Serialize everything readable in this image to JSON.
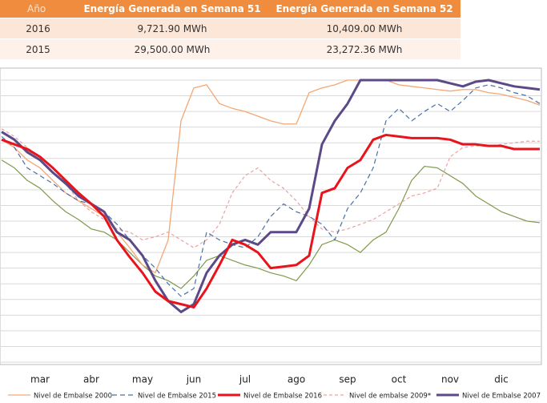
{
  "table": {
    "headers": [
      "Año",
      "Energía Generada en Semana 51",
      "Energía Generada en Semana 52"
    ],
    "rows": [
      [
        "2016",
        "9,721.90 MWh",
        "10,409.00 MWh"
      ],
      [
        "2015",
        "29,500.00 MWh",
        "23,272.36 MWh"
      ]
    ]
  },
  "chart_data": {
    "type": "line",
    "categories": [
      null,
      null,
      null,
      "mar",
      null,
      null,
      null,
      "abr",
      null,
      null,
      null,
      "may",
      null,
      null,
      null,
      "jun",
      null,
      null,
      null,
      "jul",
      null,
      null,
      null,
      "ago",
      null,
      null,
      null,
      "sep",
      null,
      null,
      null,
      "oct",
      null,
      null,
      null,
      "nov",
      null,
      null,
      null,
      "dic",
      null,
      null,
      null
    ],
    "ylim": [
      0,
      18
    ],
    "grid": true,
    "series": [
      {
        "name": "Nivel de Embalse 2000",
        "color": "#f4a774",
        "width": 1.3,
        "dash": "none",
        "values": [
          14.2,
          13.7,
          12.9,
          12.4,
          11.6,
          10.8,
          10.3,
          9.8,
          9.3,
          8.3,
          7.3,
          6.2,
          5.7,
          7.8,
          15.4,
          17.5,
          17.7,
          16.5,
          16.2,
          16.0,
          15.7,
          15.4,
          15.2,
          15.2,
          17.2,
          17.5,
          17.7,
          18.0,
          18.0,
          18.0,
          18.0,
          17.7,
          17.6,
          17.5,
          17.4,
          17.3,
          17.4,
          17.4,
          17.2,
          17.1,
          16.9,
          16.7,
          16.4
        ]
      },
      {
        "name": "Nivel de Embalse 2015",
        "color": "#4a6fa5",
        "width": 1.2,
        "dash": "6 4",
        "values": [
          14.4,
          13.7,
          12.4,
          11.9,
          11.4,
          10.8,
          10.3,
          10.1,
          9.6,
          8.8,
          7.8,
          6.8,
          6.0,
          5.0,
          4.2,
          4.7,
          8.3,
          7.8,
          7.5,
          7.3,
          8.0,
          9.3,
          10.1,
          9.6,
          9.3,
          8.8,
          7.8,
          9.8,
          10.8,
          12.4,
          15.4,
          16.2,
          15.4,
          16.0,
          16.5,
          16.0,
          16.7,
          17.5,
          17.7,
          17.5,
          17.2,
          17.0,
          16.5
        ]
      },
      {
        "name": "Nivel de Embalse 2016",
        "color": "#e8131b",
        "width": 3,
        "dash": "none",
        "values": [
          14.2,
          13.9,
          13.6,
          13.1,
          12.4,
          11.6,
          10.8,
          10.1,
          9.3,
          7.8,
          6.7,
          5.7,
          4.5,
          3.9,
          3.7,
          3.5,
          4.7,
          6.2,
          7.8,
          7.5,
          7.0,
          6.0,
          6.1,
          6.2,
          6.8,
          10.8,
          11.1,
          12.4,
          12.9,
          14.2,
          14.5,
          14.4,
          14.3,
          14.3,
          14.3,
          14.2,
          13.9,
          13.9,
          13.8,
          13.8,
          13.6,
          13.6,
          13.6
        ]
      },
      {
        "name": "Nivel de embalse 2009*",
        "color": "#e8a3a3",
        "width": 1.2,
        "dash": "4 3",
        "values": [
          14.9,
          14.4,
          13.7,
          13.1,
          12.4,
          11.4,
          10.3,
          9.6,
          9.1,
          8.5,
          8.3,
          7.8,
          8.0,
          8.3,
          7.8,
          7.3,
          7.8,
          8.8,
          10.8,
          11.9,
          12.4,
          11.6,
          11.1,
          10.3,
          9.3,
          8.5,
          8.3,
          8.5,
          8.8,
          9.1,
          9.6,
          10.1,
          10.6,
          10.8,
          11.1,
          13.1,
          13.7,
          13.8,
          13.8,
          13.9,
          14.0,
          14.1,
          14.1
        ]
      },
      {
        "name": "Nivel de Embalse 2007",
        "color": "#5b4a87",
        "width": 3,
        "dash": "none",
        "values": [
          14.7,
          14.2,
          13.4,
          12.9,
          12.1,
          11.4,
          10.6,
          10.1,
          9.6,
          8.3,
          7.8,
          6.8,
          5.2,
          3.9,
          3.2,
          3.7,
          5.7,
          6.8,
          7.5,
          7.8,
          7.5,
          8.3,
          8.3,
          8.3,
          9.8,
          13.9,
          15.4,
          16.5,
          18.0,
          18.0,
          18.0,
          18.0,
          18.0,
          18.0,
          18.0,
          17.8,
          17.6,
          17.9,
          18.0,
          17.8,
          17.6,
          17.5,
          17.4
        ]
      },
      {
        "color": "#7f9a4a",
        "width": 1.2,
        "dash": "none",
        "values": [
          12.9,
          12.4,
          11.6,
          11.1,
          10.3,
          9.6,
          9.1,
          8.5,
          8.3,
          7.8,
          7.0,
          6.2,
          5.5,
          5.2,
          4.7,
          5.5,
          6.5,
          6.8,
          6.5,
          6.2,
          6.0,
          5.7,
          5.5,
          5.2,
          6.2,
          7.5,
          7.8,
          7.5,
          7.0,
          7.8,
          8.3,
          9.8,
          11.6,
          12.5,
          12.4,
          11.9,
          11.4,
          10.6,
          10.1,
          9.6,
          9.3,
          9.0,
          8.9
        ]
      }
    ]
  }
}
